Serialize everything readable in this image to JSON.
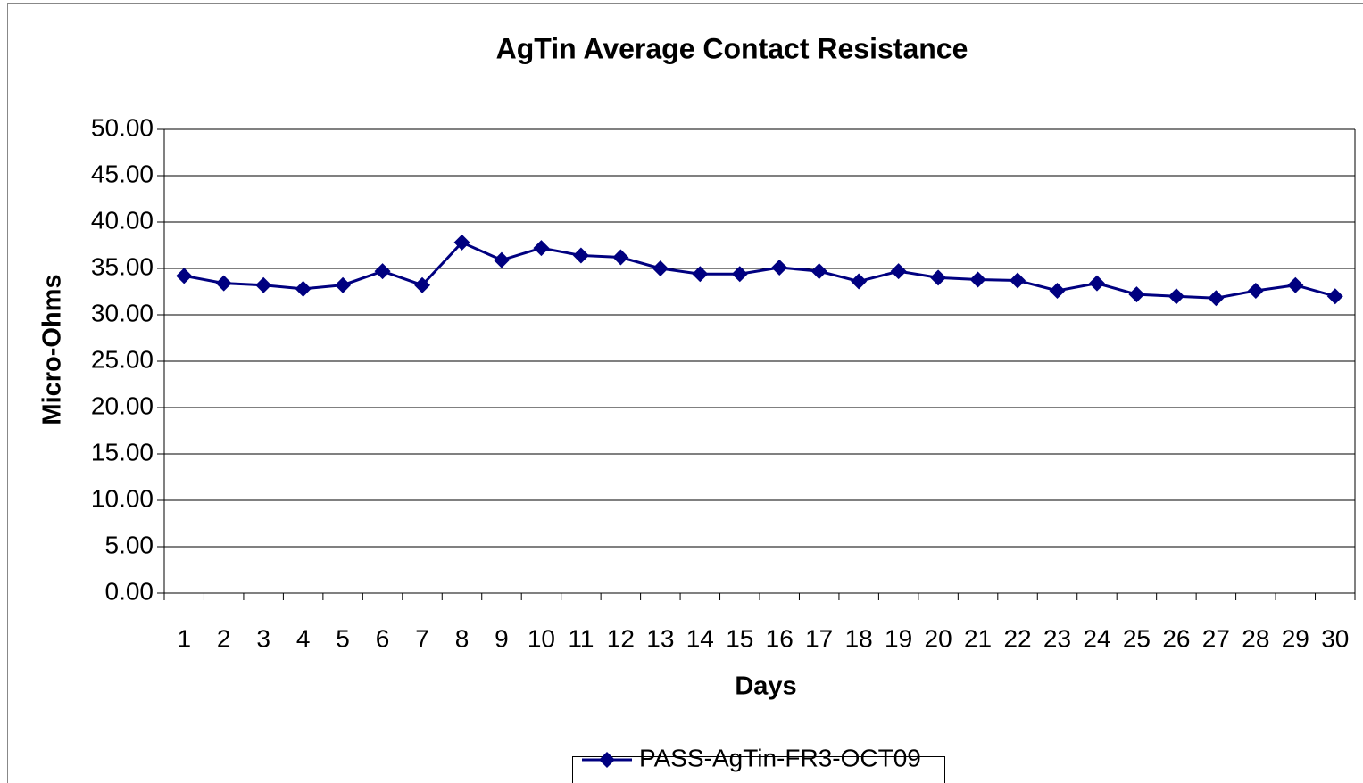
{
  "chart_data": {
    "type": "line",
    "title": "AgTin Average Contact Resistance",
    "x_label": "Days",
    "y_label": "Micro-Ohms",
    "categories": [
      "1",
      "2",
      "3",
      "4",
      "5",
      "6",
      "7",
      "8",
      "9",
      "10",
      "11",
      "12",
      "13",
      "14",
      "15",
      "16",
      "17",
      "18",
      "19",
      "20",
      "21",
      "22",
      "23",
      "24",
      "25",
      "26",
      "27",
      "28",
      "29",
      "30"
    ],
    "series": [
      {
        "name": "PASS-AgTin-FR3-OCT09",
        "color": "#000080",
        "values": [
          34.2,
          33.4,
          33.2,
          32.8,
          33.2,
          34.7,
          33.2,
          37.8,
          35.9,
          37.2,
          36.4,
          36.2,
          35.0,
          34.4,
          34.4,
          35.1,
          34.7,
          33.6,
          34.7,
          34.0,
          33.8,
          33.7,
          32.6,
          33.4,
          32.2,
          32.0,
          31.8,
          32.6,
          33.2,
          32.0
        ]
      }
    ],
    "ylim": [
      0,
      50
    ],
    "yticks": [
      {
        "value": 0,
        "label": "0.00"
      },
      {
        "value": 5,
        "label": "5.00"
      },
      {
        "value": 10,
        "label": "10.00"
      },
      {
        "value": 15,
        "label": "15.00"
      },
      {
        "value": 20,
        "label": "20.00"
      },
      {
        "value": 25,
        "label": "25.00"
      },
      {
        "value": 30,
        "label": "30.00"
      },
      {
        "value": 35,
        "label": "35.00"
      },
      {
        "value": 40,
        "label": "40.00"
      },
      {
        "value": 45,
        "label": "45.00"
      },
      {
        "value": 50,
        "label": "50.00"
      }
    ],
    "grid": true,
    "legend": "bottom"
  }
}
